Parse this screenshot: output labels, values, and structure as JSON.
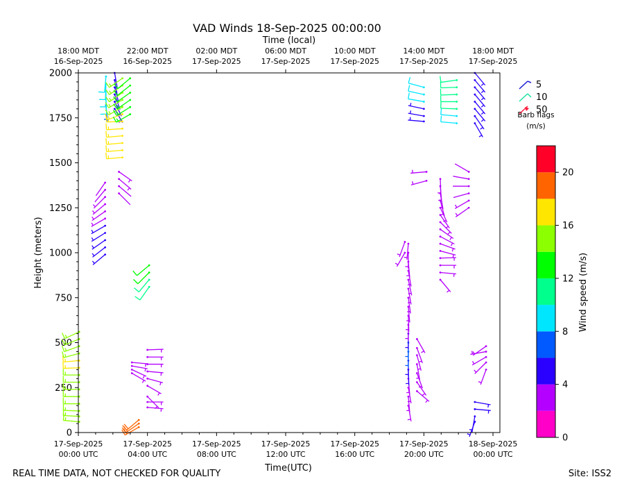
{
  "chart_data": {
    "type": "vad_wind_barbs",
    "title": "VAD Winds 18-Sep-2025 00:00:00",
    "top_axis_label": "Time (local)",
    "xlabel": "Time(UTC)",
    "ylabel": "Height (meters)",
    "xlim_hours_utc": [
      0,
      24.4
    ],
    "ylim": [
      0,
      2000
    ],
    "y_ticks": [
      0,
      250,
      500,
      750,
      1000,
      1250,
      1500,
      1750,
      2000
    ],
    "x_ticks": [
      {
        "hour": 0,
        "line1": "17-Sep-2025",
        "line2": "00:00 UTC"
      },
      {
        "hour": 4,
        "line1": "17-Sep-2025",
        "line2": "04:00 UTC"
      },
      {
        "hour": 8,
        "line1": "17-Sep-2025",
        "line2": "08:00 UTC"
      },
      {
        "hour": 12,
        "line1": "17-Sep-2025",
        "line2": "12:00 UTC"
      },
      {
        "hour": 16,
        "line1": "17-Sep-2025",
        "line2": "16:00 UTC"
      },
      {
        "hour": 20,
        "line1": "17-Sep-2025",
        "line2": "20:00 UTC"
      },
      {
        "hour": 24,
        "line1": "18-Sep-2025",
        "line2": "00:00 UTC"
      }
    ],
    "top_ticks": [
      {
        "hour": 0,
        "line1": "18:00 MDT",
        "line2": "16-Sep-2025"
      },
      {
        "hour": 4,
        "line1": "22:00 MDT",
        "line2": "16-Sep-2025"
      },
      {
        "hour": 8,
        "line1": "02:00 MDT",
        "line2": "17-Sep-2025"
      },
      {
        "hour": 12,
        "line1": "06:00 MDT",
        "line2": "17-Sep-2025"
      },
      {
        "hour": 16,
        "line1": "10:00 MDT",
        "line2": "17-Sep-2025"
      },
      {
        "hour": 20,
        "line1": "14:00 MDT",
        "line2": "17-Sep-2025"
      },
      {
        "hour": 24,
        "line1": "18:00 MDT",
        "line2": "17-Sep-2025"
      }
    ],
    "legend": {
      "title_line1": "Barb flags",
      "title_line2": "(m/s)",
      "entries": [
        {
          "label": "5",
          "color": "#1a1ad6"
        },
        {
          "label": "10",
          "color": "#19e0a0"
        },
        {
          "label": "50",
          "color": "#ff1a3c"
        }
      ]
    },
    "colorbar": {
      "label": "Wind speed (m/s)",
      "min": 0,
      "max": 22,
      "ticks": [
        0,
        4,
        8,
        12,
        16,
        20
      ],
      "bins": [
        {
          "from": 0,
          "to": 2,
          "color": "#ff00c8"
        },
        {
          "from": 2,
          "to": 4,
          "color": "#b400ff"
        },
        {
          "from": 4,
          "to": 6,
          "color": "#2a00ff"
        },
        {
          "from": 6,
          "to": 8,
          "color": "#005aff"
        },
        {
          "from": 8,
          "to": 10,
          "color": "#00e6ff"
        },
        {
          "from": 10,
          "to": 12,
          "color": "#00ff8c"
        },
        {
          "from": 12,
          "to": 14,
          "color": "#00ff00"
        },
        {
          "from": 14,
          "to": 16,
          "color": "#8cff00"
        },
        {
          "from": 16,
          "to": 18,
          "color": "#ffe600"
        },
        {
          "from": 18,
          "to": 20,
          "color": "#ff6400"
        },
        {
          "from": 20,
          "to": 22,
          "color": "#ff0028"
        }
      ]
    },
    "profiles": [
      {
        "hour": 0.05,
        "levels": [
          {
            "z": 60,
            "spd": 15,
            "dir": 275
          },
          {
            "z": 90,
            "spd": 15,
            "dir": 273
          },
          {
            "z": 120,
            "spd": 15,
            "dir": 272
          },
          {
            "z": 160,
            "spd": 15,
            "dir": 270
          },
          {
            "z": 200,
            "spd": 15,
            "dir": 270
          },
          {
            "z": 240,
            "spd": 15,
            "dir": 270
          },
          {
            "z": 280,
            "spd": 15,
            "dir": 270
          },
          {
            "z": 320,
            "spd": 15,
            "dir": 270
          },
          {
            "z": 360,
            "spd": 16,
            "dir": 268
          },
          {
            "z": 400,
            "spd": 16,
            "dir": 265
          },
          {
            "z": 440,
            "spd": 15,
            "dir": 255
          },
          {
            "z": 480,
            "spd": 15,
            "dir": 250
          },
          {
            "z": 520,
            "spd": 15,
            "dir": 248
          },
          {
            "z": 560,
            "spd": 15,
            "dir": 245
          }
        ]
      },
      {
        "hour": 1.55,
        "levels": [
          {
            "z": 990,
            "spd": 5,
            "dir": 230
          },
          {
            "z": 1030,
            "spd": 5,
            "dir": 232
          },
          {
            "z": 1070,
            "spd": 5,
            "dir": 235
          },
          {
            "z": 1110,
            "spd": 5,
            "dir": 238
          },
          {
            "z": 1150,
            "spd": 4,
            "dir": 240
          },
          {
            "z": 1190,
            "spd": 3,
            "dir": 240
          },
          {
            "z": 1230,
            "spd": 3,
            "dir": 235
          },
          {
            "z": 1270,
            "spd": 3,
            "dir": 230
          },
          {
            "z": 1310,
            "spd": 3,
            "dir": 225
          },
          {
            "z": 1350,
            "spd": 2,
            "dir": 220
          },
          {
            "z": 1390,
            "spd": 2,
            "dir": 215
          }
        ]
      },
      {
        "hour": 1.6,
        "levels": [
          {
            "z": 1820,
            "spd": 7,
            "dir": 175
          },
          {
            "z": 1860,
            "spd": 8,
            "dir": 178
          },
          {
            "z": 1900,
            "spd": 9,
            "dir": 180
          },
          {
            "z": 1940,
            "spd": 9,
            "dir": 182
          },
          {
            "z": 1980,
            "spd": 9,
            "dir": 185
          }
        ]
      },
      {
        "hour": 2.1,
        "levels": [
          {
            "z": 1800,
            "spd": 5,
            "dir": 150
          },
          {
            "z": 1840,
            "spd": 5,
            "dir": 155
          },
          {
            "z": 1880,
            "spd": 5,
            "dir": 160
          },
          {
            "z": 1920,
            "spd": 5,
            "dir": 165
          },
          {
            "z": 1960,
            "spd": 5,
            "dir": 170
          },
          {
            "z": 2000,
            "spd": 5,
            "dir": 170
          }
        ]
      },
      {
        "hour": 2.55,
        "levels": [
          {
            "z": 1530,
            "spd": 17,
            "dir": 265
          },
          {
            "z": 1570,
            "spd": 17,
            "dir": 265
          },
          {
            "z": 1610,
            "spd": 17,
            "dir": 265
          },
          {
            "z": 1650,
            "spd": 17,
            "dir": 265
          },
          {
            "z": 1690,
            "spd": 17,
            "dir": 266
          },
          {
            "z": 1730,
            "spd": 17,
            "dir": 268
          },
          {
            "z": 1770,
            "spd": 16,
            "dir": 250
          },
          {
            "z": 1810,
            "spd": 15,
            "dir": 240
          },
          {
            "z": 1850,
            "spd": 15,
            "dir": 240
          },
          {
            "z": 1890,
            "spd": 15,
            "dir": 235
          },
          {
            "z": 1930,
            "spd": 15,
            "dir": 235
          },
          {
            "z": 1970,
            "spd": 15,
            "dir": 235
          }
        ]
      },
      {
        "hour": 2.35,
        "levels": [
          {
            "z": 1330,
            "spd": 2,
            "dir": 135
          },
          {
            "z": 1370,
            "spd": 2,
            "dir": 130
          },
          {
            "z": 1410,
            "spd": 3,
            "dir": 130
          },
          {
            "z": 1450,
            "spd": 3,
            "dir": 125
          }
        ]
      },
      {
        "hour": 3.0,
        "levels": [
          {
            "z": 1770,
            "spd": 13,
            "dir": 240
          },
          {
            "z": 1810,
            "spd": 13,
            "dir": 238
          },
          {
            "z": 1850,
            "spd": 13,
            "dir": 235
          },
          {
            "z": 1890,
            "spd": 12,
            "dir": 235
          },
          {
            "z": 1930,
            "spd": 12,
            "dir": 232
          },
          {
            "z": 1970,
            "spd": 12,
            "dir": 230
          }
        ]
      },
      {
        "hour": 3.1,
        "levels": [
          {
            "z": 330,
            "spd": 3,
            "dir": 120
          },
          {
            "z": 350,
            "spd": 3,
            "dir": 115
          },
          {
            "z": 370,
            "spd": 3,
            "dir": 100
          },
          {
            "z": 390,
            "spd": 3,
            "dir": 95
          }
        ]
      },
      {
        "hour": 3.5,
        "levels": [
          {
            "z": 30,
            "spd": 19,
            "dir": 240
          },
          {
            "z": 50,
            "spd": 19,
            "dir": 235
          },
          {
            "z": 70,
            "spd": 18,
            "dir": 230
          }
        ]
      },
      {
        "hour": 4.0,
        "levels": [
          {
            "z": 200,
            "spd": 3,
            "dir": 135
          },
          {
            "z": 260,
            "spd": 3,
            "dir": 120
          },
          {
            "z": 300,
            "spd": 3,
            "dir": 105
          },
          {
            "z": 340,
            "spd": 3,
            "dir": 95
          },
          {
            "z": 380,
            "spd": 3,
            "dir": 90
          },
          {
            "z": 420,
            "spd": 3,
            "dir": 90
          },
          {
            "z": 460,
            "spd": 3,
            "dir": 88
          }
        ]
      },
      {
        "hour": 4.0,
        "levels": [
          {
            "z": 170,
            "spd": 3,
            "dir": 90
          },
          {
            "z": 140,
            "spd": 3,
            "dir": 95
          }
        ]
      },
      {
        "hour": 4.1,
        "levels": [
          {
            "z": 810,
            "spd": 11,
            "dir": 215
          },
          {
            "z": 850,
            "spd": 11,
            "dir": 220
          },
          {
            "z": 890,
            "spd": 12,
            "dir": 225
          },
          {
            "z": 930,
            "spd": 12,
            "dir": 230
          }
        ]
      },
      {
        "hour": 18.9,
        "levels": [
          {
            "z": 1000,
            "spd": 3,
            "dir": 210
          },
          {
            "z": 1060,
            "spd": 3,
            "dir": 200
          }
        ]
      },
      {
        "hour": 19.1,
        "levels": [
          {
            "z": 150,
            "spd": 3,
            "dir": 170
          },
          {
            "z": 200,
            "spd": 3,
            "dir": 175
          },
          {
            "z": 250,
            "spd": 3,
            "dir": 170
          },
          {
            "z": 300,
            "spd": 3,
            "dir": 175
          },
          {
            "z": 350,
            "spd": 4,
            "dir": 178
          },
          {
            "z": 400,
            "spd": 5,
            "dir": 180
          },
          {
            "z": 450,
            "spd": 6,
            "dir": 180
          },
          {
            "z": 500,
            "spd": 6,
            "dir": 180
          },
          {
            "z": 550,
            "spd": 5,
            "dir": 180
          },
          {
            "z": 600,
            "spd": 3,
            "dir": 180
          },
          {
            "z": 650,
            "spd": 3,
            "dir": 178
          },
          {
            "z": 700,
            "spd": 3,
            "dir": 175
          },
          {
            "z": 750,
            "spd": 3,
            "dir": 172
          },
          {
            "z": 800,
            "spd": 3,
            "dir": 170
          },
          {
            "z": 850,
            "spd": 3,
            "dir": 168
          },
          {
            "z": 900,
            "spd": 3,
            "dir": 170
          },
          {
            "z": 950,
            "spd": 3,
            "dir": 175
          },
          {
            "z": 1000,
            "spd": 3,
            "dir": 180
          },
          {
            "z": 1050,
            "spd": 3,
            "dir": 185
          }
        ]
      },
      {
        "hour": 19.6,
        "levels": [
          {
            "z": 230,
            "spd": 3,
            "dir": 130
          },
          {
            "z": 280,
            "spd": 3,
            "dir": 145
          },
          {
            "z": 330,
            "spd": 3,
            "dir": 160
          },
          {
            "z": 380,
            "spd": 3,
            "dir": 170
          },
          {
            "z": 430,
            "spd": 3,
            "dir": 165
          },
          {
            "z": 470,
            "spd": 3,
            "dir": 160
          },
          {
            "z": 520,
            "spd": 3,
            "dir": 150
          }
        ]
      },
      {
        "hour": 20.0,
        "levels": [
          {
            "z": 1730,
            "spd": 5,
            "dir": 275
          },
          {
            "z": 1760,
            "spd": 5,
            "dir": 280
          },
          {
            "z": 1800,
            "spd": 5,
            "dir": 282
          },
          {
            "z": 1840,
            "spd": 8,
            "dir": 280
          },
          {
            "z": 1880,
            "spd": 9,
            "dir": 282
          },
          {
            "z": 1920,
            "spd": 9,
            "dir": 285
          }
        ]
      },
      {
        "hour": 20.15,
        "levels": [
          {
            "z": 1400,
            "spd": 3,
            "dir": 255
          },
          {
            "z": 1450,
            "spd": 3,
            "dir": 265
          }
        ]
      },
      {
        "hour": 20.95,
        "levels": [
          {
            "z": 850,
            "spd": 3,
            "dir": 140
          },
          {
            "z": 890,
            "spd": 3,
            "dir": 95
          },
          {
            "z": 930,
            "spd": 3,
            "dir": 90
          },
          {
            "z": 970,
            "spd": 3,
            "dir": 88
          },
          {
            "z": 1010,
            "spd": 3,
            "dir": 105
          },
          {
            "z": 1050,
            "spd": 3,
            "dir": 110
          },
          {
            "z": 1090,
            "spd": 3,
            "dir": 118
          },
          {
            "z": 1130,
            "spd": 3,
            "dir": 125
          },
          {
            "z": 1170,
            "spd": 3,
            "dir": 135
          },
          {
            "z": 1210,
            "spd": 3,
            "dir": 145
          },
          {
            "z": 1250,
            "spd": 3,
            "dir": 155
          },
          {
            "z": 1290,
            "spd": 3,
            "dir": 165
          },
          {
            "z": 1330,
            "spd": 3,
            "dir": 170
          },
          {
            "z": 1370,
            "spd": 3,
            "dir": 175
          },
          {
            "z": 1410,
            "spd": 3,
            "dir": 178
          }
        ]
      },
      {
        "hour": 21.9,
        "levels": [
          {
            "z": 1720,
            "spd": 9,
            "dir": 275
          },
          {
            "z": 1760,
            "spd": 9,
            "dir": 275
          },
          {
            "z": 1800,
            "spd": 10,
            "dir": 272
          },
          {
            "z": 1840,
            "spd": 10,
            "dir": 270
          },
          {
            "z": 1880,
            "spd": 10,
            "dir": 268
          },
          {
            "z": 1920,
            "spd": 11,
            "dir": 268
          },
          {
            "z": 1960,
            "spd": 11,
            "dir": 262
          }
        ]
      },
      {
        "hour": 22.6,
        "levels": [
          {
            "z": 1250,
            "spd": 3,
            "dir": 235
          },
          {
            "z": 1290,
            "spd": 3,
            "dir": 240
          },
          {
            "z": 1330,
            "spd": 2,
            "dir": 255
          },
          {
            "z": 1370,
            "spd": 2,
            "dir": 270
          },
          {
            "z": 1410,
            "spd": 2,
            "dir": 280
          },
          {
            "z": 1450,
            "spd": 2,
            "dir": 300
          }
        ]
      },
      {
        "hour": 22.95,
        "levels": [
          {
            "z": 60,
            "spd": 5,
            "dir": 200
          },
          {
            "z": 90,
            "spd": 5,
            "dir": 190
          },
          {
            "z": 130,
            "spd": 4,
            "dir": 95
          },
          {
            "z": 170,
            "spd": 4,
            "dir": 100
          }
        ]
      },
      {
        "hour": 22.95,
        "levels": [
          {
            "z": 1720,
            "spd": 5,
            "dir": 150
          },
          {
            "z": 1760,
            "spd": 5,
            "dir": 145
          },
          {
            "z": 1800,
            "spd": 5,
            "dir": 140
          },
          {
            "z": 1840,
            "spd": 5,
            "dir": 140
          },
          {
            "z": 1880,
            "spd": 5,
            "dir": 140
          },
          {
            "z": 1920,
            "spd": 5,
            "dir": 140
          },
          {
            "z": 1960,
            "spd": 5,
            "dir": 140
          },
          {
            "z": 2000,
            "spd": 5,
            "dir": 140
          }
        ]
      },
      {
        "hour": 23.6,
        "levels": [
          {
            "z": 350,
            "spd": 3,
            "dir": 200
          },
          {
            "z": 390,
            "spd": 3,
            "dir": 225
          },
          {
            "z": 420,
            "spd": 3,
            "dir": 240
          },
          {
            "z": 450,
            "spd": 3,
            "dir": 260
          },
          {
            "z": 480,
            "spd": 3,
            "dir": 235
          }
        ]
      }
    ]
  },
  "footer": {
    "left": "REAL TIME DATA, NOT CHECKED FOR QUALITY",
    "right": "Site: ISS2"
  }
}
